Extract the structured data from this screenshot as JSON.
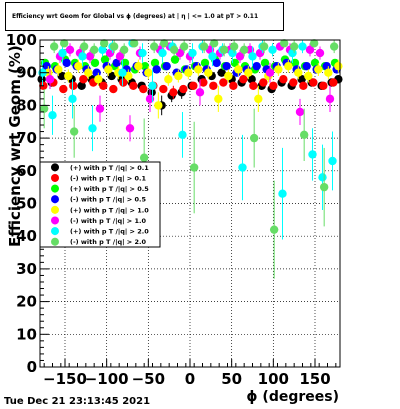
{
  "title": "Efficiency wrt Geom for Global vs ϕ (degrees) at | η | <= 1.0 at pT > 0.11",
  "timestamp": "Tue Dec 21 23:13:45 2021",
  "chart_data": {
    "type": "scatter",
    "title": "Efficiency wrt Geom for Global vs ϕ (degrees) at | η | <= 1.0 at pT > 0.11",
    "xlabel": "ϕ (degrees)",
    "ylabel": "Efficiency wrt Geom (%)",
    "xlim": [
      -180,
      180
    ],
    "ylim": [
      0,
      100
    ],
    "x_ticks": [
      -150,
      -100,
      -50,
      0,
      50,
      100,
      150
    ],
    "x_tick_labels": [
      "−150",
      "−100",
      "−50",
      "0",
      "50",
      "100",
      "150"
    ],
    "y_ticks": [
      0,
      10,
      20,
      30,
      40,
      50,
      60,
      70,
      80,
      90,
      100
    ],
    "y_tick_labels": [
      "0",
      "10",
      "20",
      "30",
      "40",
      "50",
      "60",
      "70",
      "80",
      "90",
      "100"
    ],
    "grid": true,
    "legend_position": "middle-left",
    "series": [
      {
        "name": "(+) with p T /|q| > 0.1",
        "color": "#000000",
        "x": [
          -178,
          -166,
          -154,
          -142,
          -130,
          -118,
          -106,
          -94,
          -82,
          -70,
          -58,
          -46,
          -34,
          -22,
          -10,
          2,
          14,
          26,
          38,
          50,
          62,
          74,
          86,
          98,
          110,
          122,
          134,
          146,
          158,
          170,
          178
        ],
        "y": [
          88,
          87,
          89,
          88,
          86,
          88,
          87,
          89,
          88,
          87,
          86,
          84,
          80,
          83,
          84,
          86,
          88,
          89,
          90,
          88,
          87,
          88,
          86,
          85,
          87,
          86,
          88,
          87,
          86,
          87,
          88
        ],
        "err": [
          1,
          1,
          1,
          1,
          1,
          1,
          1,
          1,
          1,
          1,
          1,
          2,
          3,
          2,
          2,
          1,
          1,
          1,
          1,
          1,
          1,
          1,
          1,
          1,
          1,
          1,
          1,
          1,
          1,
          1,
          1
        ]
      },
      {
        "name": "(-) with p T /|q| > 0.1",
        "color": "#ff0000",
        "x": [
          -176,
          -164,
          -152,
          -140,
          -128,
          -116,
          -104,
          -92,
          -80,
          -68,
          -56,
          -44,
          -32,
          -20,
          -8,
          4,
          16,
          28,
          40,
          52,
          64,
          76,
          88,
          100,
          112,
          124,
          136,
          148,
          160,
          172
        ],
        "y": [
          86,
          87,
          85,
          86,
          88,
          87,
          86,
          85,
          87,
          86,
          85,
          86,
          85,
          84,
          85,
          86,
          87,
          86,
          87,
          86,
          88,
          86,
          87,
          86,
          88,
          87,
          86,
          87,
          86,
          87
        ],
        "err": [
          1,
          1,
          1,
          1,
          1,
          1,
          1,
          1,
          1,
          1,
          1,
          1,
          1,
          2,
          1,
          1,
          1,
          1,
          1,
          1,
          1,
          1,
          1,
          1,
          1,
          1,
          1,
          1,
          1,
          1
        ]
      },
      {
        "name": "(+) with p T /|q| > 0.5",
        "color": "#00ff00",
        "x": [
          -174,
          -162,
          -150,
          -138,
          -126,
          -114,
          -102,
          -90,
          -78,
          -66,
          -54,
          -42,
          -30,
          -18,
          -6,
          6,
          18,
          30,
          42,
          54,
          66,
          78,
          90,
          102,
          114,
          126,
          138,
          150,
          162,
          174
        ],
        "y": [
          93,
          92,
          94,
          93,
          92,
          93,
          94,
          92,
          93,
          91,
          92,
          93,
          92,
          94,
          91,
          92,
          93,
          94,
          92,
          93,
          92,
          91,
          93,
          92,
          94,
          93,
          92,
          93,
          92,
          93
        ],
        "err": [
          1,
          1,
          1,
          1,
          1,
          1,
          1,
          1,
          1,
          1,
          1,
          1,
          1,
          1,
          1,
          1,
          1,
          1,
          1,
          1,
          1,
          1,
          1,
          1,
          1,
          1,
          1,
          1,
          1,
          1
        ]
      },
      {
        "name": "(-) with p T /|q| > 0.5",
        "color": "#0000ff",
        "x": [
          -172,
          -160,
          -148,
          -136,
          -124,
          -112,
          -100,
          -88,
          -76,
          -64,
          -52,
          -40,
          -28,
          -16,
          -4,
          8,
          20,
          32,
          44,
          56,
          68,
          80,
          92,
          104,
          116,
          128,
          140,
          152,
          164,
          176
        ],
        "y": [
          92,
          91,
          93,
          92,
          91,
          90,
          92,
          93,
          91,
          92,
          90,
          91,
          92,
          90,
          91,
          92,
          91,
          93,
          92,
          90,
          91,
          92,
          91,
          92,
          93,
          91,
          92,
          91,
          92,
          91
        ],
        "err": [
          1,
          1,
          1,
          1,
          1,
          1,
          1,
          1,
          1,
          1,
          1,
          1,
          1,
          1,
          1,
          1,
          1,
          1,
          1,
          1,
          1,
          1,
          1,
          1,
          1,
          1,
          1,
          1,
          1,
          1
        ]
      },
      {
        "name": "(+) with p T /|q| > 1.0",
        "color": "#ffff00",
        "x": [
          -170,
          -158,
          -146,
          -134,
          -122,
          -110,
          -98,
          -86,
          -74,
          -62,
          -50,
          -38,
          -26,
          -14,
          -2,
          10,
          22,
          34,
          46,
          58,
          70,
          82,
          94,
          106,
          118,
          130,
          142,
          154,
          166,
          178
        ],
        "y": [
          90,
          91,
          89,
          92,
          90,
          88,
          91,
          90,
          89,
          92,
          90,
          80,
          88,
          89,
          90,
          91,
          90,
          82,
          89,
          91,
          90,
          82,
          89,
          91,
          92,
          90,
          89,
          91,
          90,
          92
        ],
        "err": [
          2,
          2,
          2,
          2,
          2,
          2,
          2,
          2,
          2,
          2,
          2,
          4,
          2,
          2,
          2,
          2,
          2,
          4,
          2,
          2,
          2,
          4,
          2,
          2,
          2,
          2,
          2,
          2,
          2,
          2
        ]
      },
      {
        "name": "(-) with p T /|q| > 1.0",
        "color": "#ff00ff",
        "x": [
          -168,
          -156,
          -144,
          -132,
          -120,
          -108,
          -96,
          -84,
          -72,
          -60,
          -48,
          -36,
          -24,
          -12,
          0,
          12,
          24,
          36,
          48,
          60,
          72,
          84,
          96,
          108,
          120,
          132,
          144,
          156,
          168
        ],
        "y": [
          88,
          95,
          97,
          96,
          95,
          79,
          96,
          95,
          73,
          96,
          82,
          97,
          98,
          96,
          95,
          84,
          97,
          96,
          97,
          95,
          97,
          96,
          90,
          98,
          97,
          78,
          97,
          96,
          82
        ],
        "err": [
          3,
          2,
          2,
          2,
          2,
          4,
          2,
          2,
          4,
          2,
          4,
          2,
          1,
          2,
          2,
          4,
          2,
          2,
          2,
          2,
          2,
          2,
          3,
          1,
          2,
          4,
          2,
          2,
          4
        ]
      },
      {
        "name": "(+) with p T /|q| > 2.0",
        "color": "#00ffff",
        "x": [
          -177,
          -165,
          -153,
          -141,
          -129,
          -117,
          -105,
          -93,
          -81,
          -69,
          -57,
          -45,
          -33,
          -21,
          -9,
          3,
          15,
          27,
          39,
          51,
          63,
          75,
          87,
          99,
          111,
          123,
          135,
          147,
          159,
          171
        ],
        "y": [
          90,
          77,
          96,
          82,
          95,
          73,
          97,
          98,
          90,
          99,
          96,
          86,
          96,
          98,
          71,
          96,
          98,
          95,
          97,
          96,
          61,
          95,
          98,
          97,
          53,
          96,
          98,
          65,
          58,
          63
        ],
        "err": [
          4,
          6,
          3,
          6,
          3,
          7,
          2,
          2,
          4,
          1,
          3,
          5,
          3,
          2,
          7,
          3,
          2,
          3,
          2,
          3,
          10,
          3,
          2,
          2,
          14,
          3,
          2,
          8,
          10,
          9
        ]
      },
      {
        "name": "(-) with p T /|q| > 2.0",
        "color": "#66dd66",
        "x": [
          -175,
          -163,
          -151,
          -139,
          -127,
          -115,
          -103,
          -91,
          -79,
          -67,
          -55,
          -43,
          -31,
          -19,
          -7,
          5,
          17,
          29,
          41,
          53,
          65,
          77,
          89,
          101,
          113,
          125,
          137,
          149,
          161,
          173
        ],
        "y": [
          79,
          98,
          99,
          72,
          98,
          97,
          99,
          98,
          97,
          99,
          64,
          98,
          99,
          97,
          98,
          61,
          98,
          99,
          97,
          98,
          97,
          70,
          98,
          42,
          99,
          98,
          71,
          99,
          55,
          98
        ],
        "err": [
          6,
          2,
          1,
          8,
          2,
          2,
          1,
          2,
          2,
          1,
          12,
          2,
          1,
          2,
          2,
          14,
          2,
          1,
          2,
          2,
          2,
          9,
          2,
          15,
          1,
          2,
          8,
          1,
          12,
          2
        ]
      }
    ]
  }
}
